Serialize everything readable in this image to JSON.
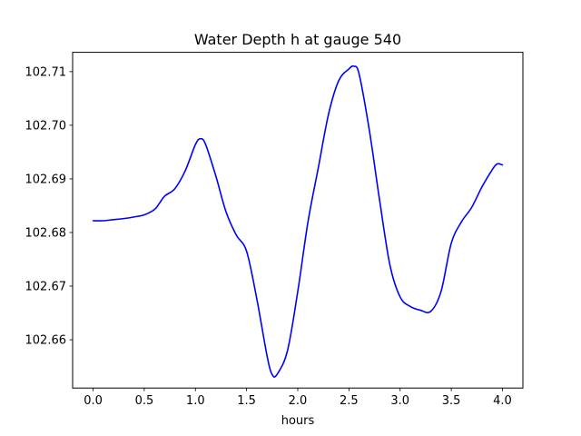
{
  "chart_data": {
    "type": "line",
    "title": "Water Depth h at gauge 540",
    "xlabel": "hours",
    "ylabel": "",
    "xlim": [
      -0.2,
      4.2
    ],
    "ylim": [
      102.651,
      102.7136
    ],
    "xticks": [
      0.0,
      0.5,
      1.0,
      1.5,
      2.0,
      2.5,
      3.0,
      3.5,
      4.0
    ],
    "xtick_labels": [
      "0.0",
      "0.5",
      "1.0",
      "1.5",
      "2.0",
      "2.5",
      "3.0",
      "3.5",
      "4.0"
    ],
    "yticks": [
      102.66,
      102.67,
      102.68,
      102.69,
      102.7,
      102.71
    ],
    "ytick_labels": [
      "102.66",
      "102.67",
      "102.68",
      "102.69",
      "102.70",
      "102.71"
    ],
    "grid": false,
    "legend": "none",
    "series": [
      {
        "color": "#0000ff",
        "x": [
          0.0,
          0.1,
          0.2,
          0.3,
          0.4,
          0.5,
          0.6,
          0.65,
          0.7,
          0.8,
          0.9,
          1.0,
          1.05,
          1.1,
          1.2,
          1.3,
          1.4,
          1.5,
          1.6,
          1.7,
          1.75,
          1.8,
          1.9,
          2.0,
          2.1,
          2.2,
          2.3,
          2.4,
          2.5,
          2.55,
          2.6,
          2.7,
          2.8,
          2.9,
          3.0,
          3.1,
          3.2,
          3.3,
          3.4,
          3.5,
          3.6,
          3.7,
          3.8,
          3.9,
          3.95,
          4.0
        ],
        "y": [
          102.6822,
          102.6822,
          102.6824,
          102.6826,
          102.6829,
          102.6833,
          102.6843,
          102.6855,
          102.6868,
          102.6882,
          102.6915,
          102.6964,
          102.6975,
          102.6964,
          102.6905,
          102.6838,
          102.6795,
          102.6765,
          102.6676,
          102.657,
          102.6535,
          102.6536,
          102.658,
          102.669,
          102.682,
          102.692,
          102.702,
          102.7083,
          102.7105,
          102.711,
          102.7095,
          102.699,
          102.686,
          102.674,
          102.668,
          102.6662,
          102.6655,
          102.6653,
          102.669,
          102.678,
          102.682,
          102.6847,
          102.6885,
          102.6917,
          102.6928,
          102.6926
        ]
      }
    ]
  }
}
